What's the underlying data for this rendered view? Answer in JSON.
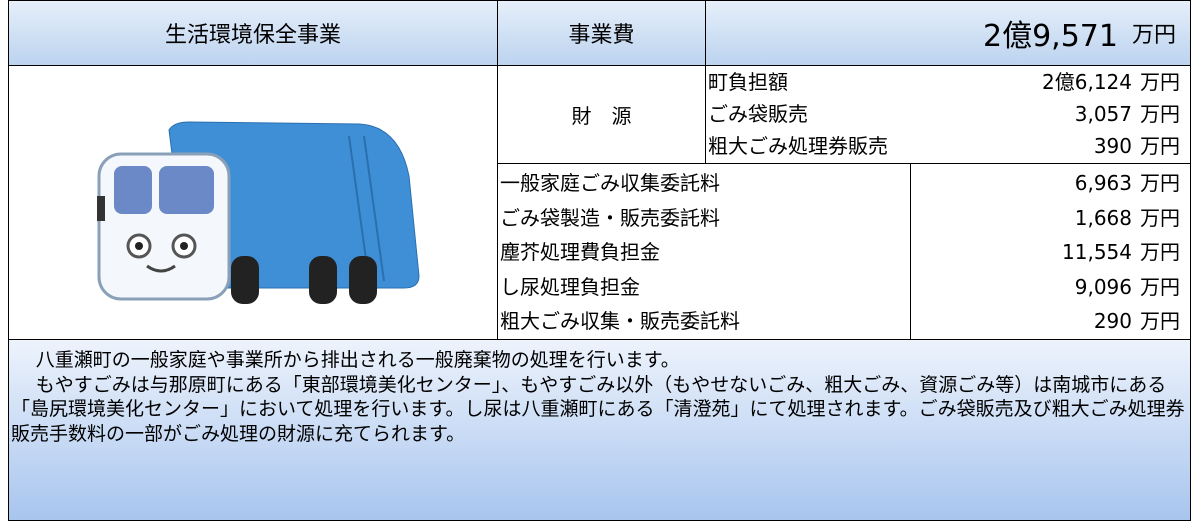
{
  "header": {
    "title": "生活環境保全事業",
    "cost_label": "事業費",
    "cost": "2億9,571",
    "cost_unit": "万円"
  },
  "funding": {
    "label": "財　源",
    "rows": [
      {
        "label": "町負担額",
        "amount": "2億6,124",
        "unit": "万円"
      },
      {
        "label": "ごみ袋販売",
        "amount": "3,057",
        "unit": "万円"
      },
      {
        "label": "粗大ごみ処理券販売",
        "amount": "390",
        "unit": "万円"
      }
    ]
  },
  "expenses": [
    {
      "label": "一般家庭ごみ収集委託料",
      "amount": "6,963",
      "unit": "万円"
    },
    {
      "label": "ごみ袋製造・販売委託料",
      "amount": "1,668",
      "unit": "万円"
    },
    {
      "label": "塵芥処理費負担金",
      "amount": "11,554",
      "unit": "万円"
    },
    {
      "label": "し尿処理負担金",
      "amount": "9,096",
      "unit": "万円"
    },
    {
      "label": "粗大ごみ収集・販売委託料",
      "amount": "290",
      "unit": "万円"
    }
  ],
  "description": [
    "八重瀬町の一般家庭や事業所から排出される一般廃棄物の処理を行います。",
    "もやすごみは与那原町にある「東部環境美化センター」、もやすごみ以外（もやせないごみ、粗大ごみ、資源ごみ等）は南城市にある「島尻環境美化センター」において処理を行います。し尿は八重瀬町にある「清澄苑」にて処理されます。ごみ袋販売及び粗大ごみ処理券販売手数料の一部がごみ処理の財源に充てられます。"
  ]
}
